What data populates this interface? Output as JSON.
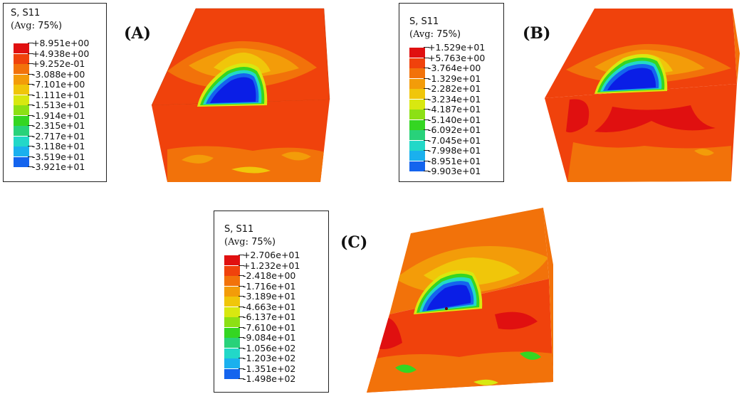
{
  "panels": [
    {
      "label": "(A)",
      "legend": {
        "variable": "S, S11",
        "avg_prefix": "(Avg:",
        "avg_pct": " 75%)",
        "values": [
          "+8.951e+00",
          "+4.938e+00",
          "+9.252e-01",
          "-3.088e+00",
          "-7.101e+00",
          "-1.111e+01",
          "-1.513e+01",
          "-1.914e+01",
          "-2.315e+01",
          "-2.717e+01",
          "-3.118e+01",
          "-3.519e+01",
          "-3.921e+01"
        ]
      }
    },
    {
      "label": "(B)",
      "legend": {
        "variable": "S, S11",
        "avg_prefix": "(Avg:",
        "avg_pct": " 75%)",
        "values": [
          "+1.529e+01",
          "+5.763e+00",
          "-3.764e+00",
          "-1.329e+01",
          "-2.282e+01",
          "-3.234e+01",
          "-4.187e+01",
          "-5.140e+01",
          "-6.092e+01",
          "-7.045e+01",
          "-7.998e+01",
          "-8.951e+01",
          "-9.903e+01"
        ]
      }
    },
    {
      "label": "(C)",
      "legend": {
        "variable": "S, S11",
        "avg_prefix": "(Avg:",
        "avg_pct": " 75%)",
        "values": [
          "+2.706e+01",
          "+1.232e+01",
          "-2.418e+00",
          "-1.716e+01",
          "-3.189e+01",
          "-4.663e+01",
          "-6.137e+01",
          "-7.610e+01",
          "-9.084e+01",
          "-1.056e+02",
          "-1.203e+02",
          "-1.351e+02",
          "-1.498e+02"
        ]
      }
    }
  ],
  "colormap": [
    "#e01010",
    "#f0420c",
    "#f2720a",
    "#f39c09",
    "#f0c60a",
    "#d8e810",
    "#8ce014",
    "#34d622",
    "#28d27a",
    "#22d8c8",
    "#1ab0ee",
    "#1464ee",
    "#0a1ee6"
  ]
}
